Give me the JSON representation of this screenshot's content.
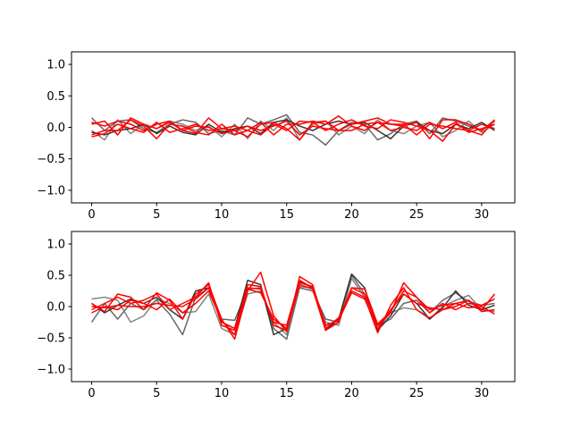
{
  "chart_data": [
    {
      "type": "line",
      "x": [
        0,
        1,
        2,
        3,
        4,
        5,
        6,
        7,
        8,
        9,
        10,
        11,
        12,
        13,
        14,
        15,
        16,
        17,
        18,
        19,
        20,
        21,
        22,
        23,
        24,
        25,
        26,
        27,
        28,
        29,
        30,
        31
      ],
      "xlim": [
        -1.55,
        32.55
      ],
      "ylim": [
        -1.2,
        1.2
      ],
      "xticks": [
        0,
        5,
        10,
        15,
        20,
        25,
        30
      ],
      "yticks": [
        -1.0,
        -0.5,
        0.0,
        0.5,
        1.0
      ],
      "xtick_labels": [
        "0",
        "5",
        "10",
        "15",
        "20",
        "25",
        "30"
      ],
      "ytick_labels": [
        "−1.0",
        "−0.5",
        "0.0",
        "0.5",
        "1.0"
      ],
      "grid": false,
      "series": [
        {
          "color": "#555555",
          "values": [
            0.15,
            -0.05,
            0.1,
            0.12,
            -0.02,
            -0.08,
            0.05,
            0.12,
            0.08,
            -0.1,
            -0.05,
            -0.12,
            0.15,
            0.05,
            0.12,
            0.2,
            -0.08,
            -0.12,
            -0.28,
            -0.05,
            0.08,
            0.05,
            -0.2,
            -0.1,
            0.05,
            0.1,
            -0.1,
            0.15,
            0.1,
            0.02,
            -0.05,
            0.12
          ]
        },
        {
          "color": "#777777",
          "values": [
            -0.05,
            -0.2,
            0.12,
            -0.1,
            0.05,
            -0.02,
            0.1,
            0.05,
            -0.05,
            0.02,
            -0.15,
            0.05,
            -0.18,
            0.1,
            -0.05,
            0.15,
            -0.2,
            0.05,
            0.1,
            -0.12,
            0.02,
            -0.1,
            0.12,
            -0.05,
            -0.1,
            0.02,
            0.08,
            -0.15,
            -0.05,
            0.1,
            -0.08,
            0.05
          ]
        },
        {
          "color": "#222222",
          "values": [
            -0.08,
            -0.12,
            -0.05,
            -0.02,
            0.05,
            -0.1,
            0.02,
            -0.08,
            -0.12,
            0.05,
            -0.08,
            -0.02,
            0.02,
            -0.1,
            0.08,
            0.12,
            0.02,
            -0.05,
            0.05,
            0.1,
            0.05,
            0.08,
            -0.05,
            -0.18,
            0.02,
            0.08,
            -0.05,
            -0.1,
            0.05,
            -0.02,
            0.08,
            -0.05
          ]
        },
        {
          "color": "#ff0000",
          "values": [
            0.05,
            0.1,
            -0.12,
            0.15,
            0.05,
            -0.02,
            0.08,
            -0.05,
            -0.1,
            0.15,
            -0.02,
            -0.05,
            -0.15,
            0.05,
            0.08,
            -0.02,
            -0.2,
            0.08,
            0.1,
            -0.05,
            0.05,
            0.1,
            0.15,
            0.05,
            0.02,
            0.08,
            -0.18,
            0.12,
            0.12,
            0.05,
            -0.05,
            0.1
          ]
        },
        {
          "color": "#ff0000",
          "values": [
            -0.12,
            -0.05,
            -0.05,
            0.12,
            0.02,
            -0.18,
            0.05,
            0.02,
            -0.08,
            -0.12,
            0.05,
            -0.12,
            -0.05,
            -0.12,
            0.05,
            -0.05,
            0.1,
            0.08,
            -0.05,
            0.05,
            0.12,
            0.02,
            -0.02,
            0.12,
            0.08,
            0.02,
            -0.05,
            -0.22,
            0.05,
            -0.05,
            -0.12,
            0.12
          ]
        },
        {
          "color": "#ff0000",
          "values": [
            -0.15,
            -0.1,
            0.05,
            -0.02,
            -0.08,
            0.08,
            -0.08,
            -0.02,
            0.05,
            -0.05,
            -0.02,
            0.02,
            -0.05,
            0.08,
            -0.12,
            0.05,
            0.05,
            0.1,
            0.05,
            0.18,
            0.02,
            -0.05,
            0.08,
            0.05,
            0.05,
            -0.12,
            0.05,
            0.02,
            -0.02,
            -0.05,
            0.05,
            -0.02
          ]
        },
        {
          "color": "#ff0000",
          "values": [
            0.08,
            0.02,
            0.1,
            0.05,
            -0.05,
            0.05,
            0.1,
            -0.05,
            0.02,
            0.0,
            -0.1,
            -0.05,
            0.02,
            -0.05,
            0.02,
            0.1,
            -0.12,
            0.02,
            -0.02,
            -0.05,
            -0.05,
            0.05,
            0.08,
            -0.05,
            0.0,
            -0.05,
            0.08,
            -0.02,
            0.08,
            -0.08,
            -0.02,
            0.05
          ]
        }
      ]
    },
    {
      "type": "line",
      "x": [
        0,
        1,
        2,
        3,
        4,
        5,
        6,
        7,
        8,
        9,
        10,
        11,
        12,
        13,
        14,
        15,
        16,
        17,
        18,
        19,
        20,
        21,
        22,
        23,
        24,
        25,
        26,
        27,
        28,
        29,
        30,
        31
      ],
      "xlim": [
        -1.55,
        32.55
      ],
      "ylim": [
        -1.2,
        1.2
      ],
      "xticks": [
        0,
        5,
        10,
        15,
        20,
        25,
        30
      ],
      "yticks": [
        -1.0,
        -0.5,
        0.0,
        0.5,
        1.0
      ],
      "xtick_labels": [
        "0",
        "5",
        "10",
        "15",
        "20",
        "25",
        "30"
      ],
      "ytick_labels": [
        "−1.0",
        "−0.5",
        "0.0",
        "0.5",
        "1.0"
      ],
      "grid": false,
      "series": [
        {
          "color": "#555555",
          "values": [
            -0.25,
            0.05,
            -0.2,
            0.05,
            -0.05,
            0.1,
            -0.12,
            -0.45,
            0.15,
            0.3,
            -0.2,
            -0.22,
            0.28,
            0.3,
            -0.35,
            -0.52,
            0.3,
            0.25,
            -0.2,
            -0.25,
            0.5,
            0.2,
            -0.3,
            -0.2,
            0.05,
            0.1,
            -0.1,
            0.1,
            0.22,
            0.08,
            0.02,
            0.05
          ]
        },
        {
          "color": "#777777",
          "values": [
            0.12,
            0.15,
            0.1,
            -0.25,
            -0.15,
            0.12,
            0.05,
            -0.1,
            -0.08,
            0.2,
            -0.35,
            -0.45,
            0.2,
            0.25,
            -0.25,
            -0.45,
            0.32,
            0.3,
            -0.25,
            -0.3,
            0.45,
            0.15,
            -0.35,
            -0.1,
            -0.02,
            -0.05,
            -0.2,
            0.0,
            0.1,
            0.18,
            -0.05,
            -0.08
          ]
        },
        {
          "color": "#222222",
          "values": [
            0.05,
            -0.1,
            0.02,
            0.12,
            0.05,
            0.15,
            -0.05,
            -0.2,
            0.25,
            0.3,
            -0.25,
            -0.35,
            0.42,
            0.35,
            -0.45,
            -0.35,
            0.4,
            0.3,
            -0.38,
            -0.2,
            0.52,
            0.3,
            -0.38,
            -0.15,
            0.2,
            0.05,
            -0.2,
            -0.02,
            0.25,
            0.02,
            -0.05,
            0.02
          ]
        },
        {
          "color": "#ff0000",
          "values": [
            0.05,
            -0.08,
            0.2,
            0.15,
            -0.05,
            0.22,
            0.1,
            -0.2,
            0.2,
            0.35,
            -0.2,
            -0.52,
            0.25,
            0.55,
            -0.15,
            -0.4,
            0.48,
            0.35,
            -0.35,
            -0.18,
            0.25,
            0.15,
            -0.42,
            0.02,
            0.3,
            -0.05,
            -0.18,
            -0.05,
            0.05,
            0.1,
            -0.05,
            0.2
          ]
        },
        {
          "color": "#ff0000",
          "values": [
            -0.05,
            0.05,
            0.15,
            0.05,
            0.1,
            0.2,
            -0.05,
            0.05,
            0.15,
            0.38,
            -0.3,
            -0.38,
            0.35,
            0.32,
            -0.3,
            -0.38,
            0.35,
            0.28,
            -0.38,
            -0.25,
            0.3,
            0.2,
            -0.3,
            -0.1,
            0.38,
            0.15,
            -0.1,
            0.05,
            -0.05,
            0.05,
            0.02,
            0.12
          ]
        },
        {
          "color": "#ff0000",
          "values": [
            -0.1,
            0.0,
            -0.05,
            0.1,
            0.05,
            -0.05,
            0.12,
            -0.1,
            0.05,
            0.25,
            -0.22,
            -0.45,
            0.28,
            0.22,
            -0.2,
            -0.35,
            0.38,
            0.32,
            -0.3,
            -0.22,
            0.22,
            0.12,
            -0.35,
            -0.05,
            0.2,
            0.05,
            -0.02,
            -0.05,
            0.0,
            0.1,
            -0.08,
            -0.05
          ]
        },
        {
          "color": "#ff0000",
          "values": [
            0.0,
            -0.02,
            0.02,
            0.0,
            0.0,
            0.05,
            0.02,
            0.0,
            0.12,
            0.3,
            -0.25,
            -0.35,
            0.3,
            0.28,
            -0.25,
            -0.3,
            0.42,
            0.3,
            -0.3,
            -0.22,
            0.3,
            0.28,
            -0.28,
            -0.08,
            0.25,
            0.15,
            -0.05,
            0.02,
            0.05,
            -0.02,
            0.0,
            -0.12
          ]
        }
      ]
    }
  ]
}
